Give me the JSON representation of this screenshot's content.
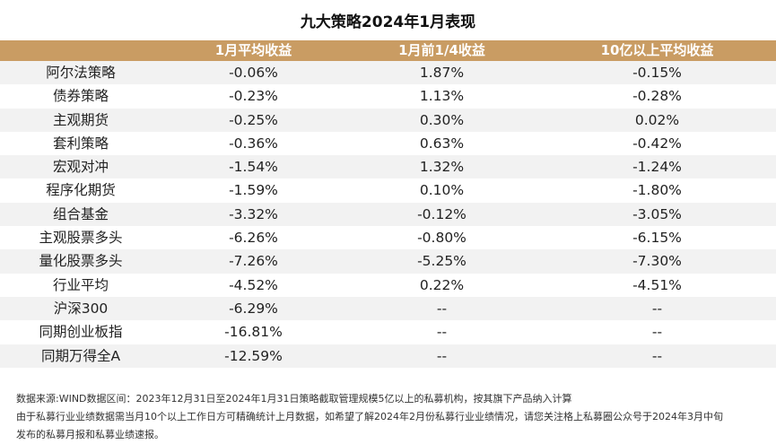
{
  "title": "九大策略2024年1月表现",
  "headers": [
    "",
    "1月平均收益",
    "1月前1/4收益",
    "10亿以上平均收益"
  ],
  "rows": [
    [
      "阿尔法策略",
      "-0.06%",
      "1.87%",
      "-0.15%"
    ],
    [
      "债券策略",
      "-0.23%",
      "1.13%",
      "-0.28%"
    ],
    [
      "主观期货",
      "-0.25%",
      "0.30%",
      "0.02%"
    ],
    [
      "套利策略",
      "-0.36%",
      "0.63%",
      "-0.42%"
    ],
    [
      "宏观对冲",
      "-1.54%",
      "1.32%",
      "-1.24%"
    ],
    [
      "程序化期货",
      "-1.59%",
      "0.10%",
      "-1.80%"
    ],
    [
      "组合基金",
      "-3.32%",
      "-0.12%",
      "-3.05%"
    ],
    [
      "主观股票多头",
      "-6.26%",
      "-0.80%",
      "-6.15%"
    ],
    [
      "量化股票多头",
      "-7.26%",
      "-5.25%",
      "-7.30%"
    ],
    [
      "行业平均",
      "-4.52%",
      "0.22%",
      "-4.51%"
    ],
    [
      "沪深300",
      "-6.29%",
      "--",
      "--"
    ],
    [
      "同期创业板指",
      "-16.81%",
      "--",
      "--"
    ],
    [
      "同期万得全A",
      "-12.59%",
      "--",
      "--"
    ]
  ],
  "footer": [
    "数据来源:WIND数据区间：2023年12月31日至2024年1月31日策略截取管理规模5亿以上的私募机构，按其旗下产品纳入计算",
    "由于私募行业业绩数据需当月10个以上工作日方可精确统计上月数据，如希望了解2024年2月份私募行业业绩情况，请您关注格上私募圈公众号于2024年3月中旬",
    "发布的私募月报和私募业绩速报。"
  ],
  "colors": {
    "header_bg": "#C99C63",
    "stripe": "#F2F2F2"
  }
}
